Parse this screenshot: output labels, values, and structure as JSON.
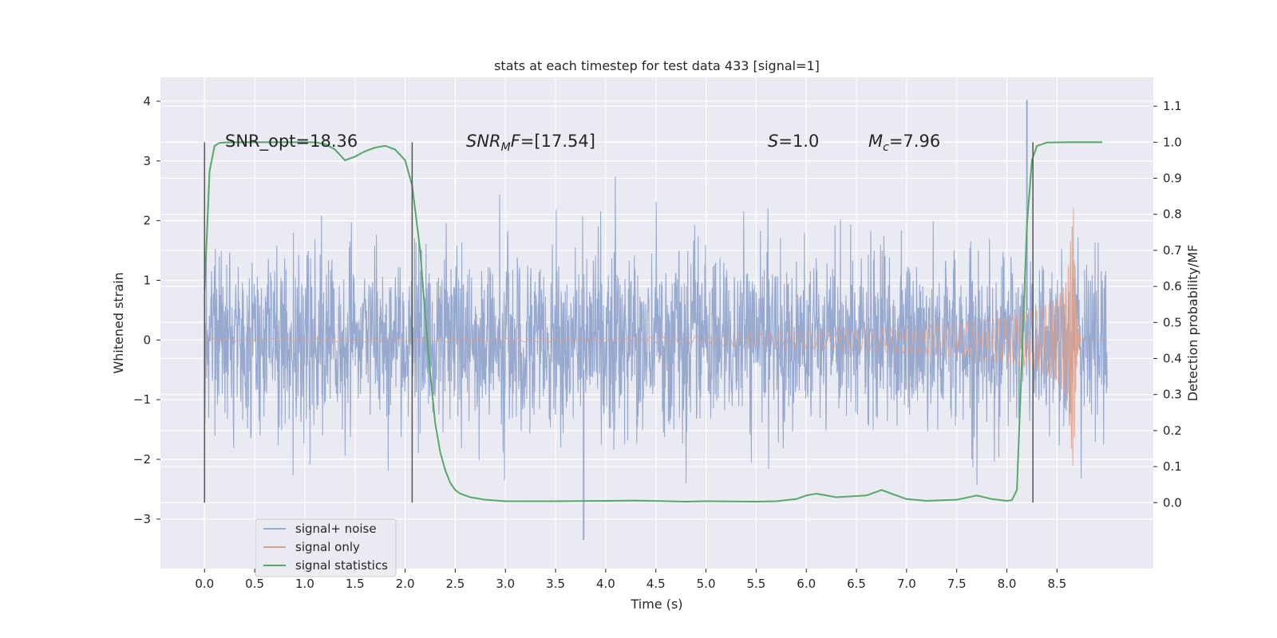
{
  "chart_data": {
    "type": "line",
    "title": "stats at each timestep for test data 433 [signal=1]",
    "xlabel": "Time (s)",
    "ylabel": "Whitened strain",
    "y2label": "Detection probability/MF",
    "xlim": [
      -0.44,
      9.46
    ],
    "ylim": [
      -3.83,
      4.4
    ],
    "y2lim": [
      -0.183,
      1.18
    ],
    "x_ticks": [
      0.0,
      0.5,
      1.0,
      1.5,
      2.0,
      2.5,
      3.0,
      3.5,
      4.0,
      4.5,
      5.0,
      5.5,
      6.0,
      6.5,
      7.0,
      7.5,
      8.0,
      8.5
    ],
    "x_tick_labels": [
      "0.0",
      "0.5",
      "1.0",
      "1.5",
      "2.0",
      "2.5",
      "3.0",
      "3.5",
      "4.0",
      "4.5",
      "5.0",
      "5.5",
      "6.0",
      "6.5",
      "7.0",
      "7.5",
      "8.0",
      "8.5"
    ],
    "y_ticks": [
      4,
      3,
      2,
      1,
      0,
      -1,
      -2,
      -3
    ],
    "y_tick_labels": [
      "4",
      "3",
      "2",
      "1",
      "0",
      "−1",
      "−2",
      "−3"
    ],
    "y2_ticks": [
      1.1,
      1.0,
      0.9,
      0.8,
      0.7,
      0.6,
      0.5,
      0.4,
      0.3,
      0.2,
      0.1,
      0.0
    ],
    "y2_tick_labels": [
      "1.1",
      "1.0",
      "0.9",
      "0.8",
      "0.7",
      "0.6",
      "0.5",
      "0.4",
      "0.3",
      "0.2",
      "0.1",
      "0.0"
    ],
    "grid": true,
    "legend_position": "lower-left",
    "annotations": {
      "snr_opt": "SNR_opt=18.36",
      "snr_mf_sym": "SNR",
      "snr_mf_sub": "M",
      "snr_mf_f": "F",
      "snr_mf_val": "=[17.54]",
      "s_sym": "S",
      "s_val": "=1.0",
      "mc_sym": "M",
      "mc_sub": "c",
      "mc_val": "=7.96"
    },
    "vertical_markers": [
      0.0,
      2.07,
      8.26
    ],
    "series": [
      {
        "name": "signal+ noise",
        "color": "#97a9cf",
        "description": "whitened strain, approx Gaussian noise, duration 0 to 9.0 s, amplitude within about -3.4 to 4.0",
        "t_start": 0.0,
        "t_end": 9.0,
        "peak": {
          "x": 8.2,
          "y": 4.02
        },
        "min": {
          "x": 3.78,
          "y": -3.35
        }
      },
      {
        "name": "signal only",
        "color": "#dd9f88",
        "description": "chirp waveform growing in amplitude, merger near 8.67 s then ringdown",
        "envelope": {
          "x": [
            0.0,
            4.0,
            4.5,
            5.0,
            5.5,
            6.0,
            6.5,
            7.0,
            7.5,
            8.0,
            8.3,
            8.5,
            8.6,
            8.67
          ],
          "amp": [
            0.02,
            0.03,
            0.05,
            0.08,
            0.12,
            0.15,
            0.18,
            0.22,
            0.28,
            0.38,
            0.5,
            0.7,
            1.0,
            2.35
          ]
        },
        "ringdown_end": 8.73,
        "t_end": 9.0
      },
      {
        "name": "signal statistics",
        "color": "#55a868",
        "axis": "right",
        "x": [
          0.0,
          0.05,
          0.1,
          0.15,
          0.2,
          0.3,
          0.5,
          0.8,
          1.0,
          1.1,
          1.2,
          1.3,
          1.4,
          1.5,
          1.6,
          1.7,
          1.8,
          1.9,
          2.0,
          2.07,
          2.15,
          2.2,
          2.25,
          2.3,
          2.35,
          2.4,
          2.45,
          2.5,
          2.55,
          2.65,
          2.8,
          3.0,
          3.5,
          4.0,
          4.3,
          4.8,
          5.0,
          5.5,
          5.7,
          5.9,
          6.0,
          6.1,
          6.3,
          6.6,
          6.75,
          6.85,
          7.0,
          7.2,
          7.5,
          7.7,
          7.85,
          8.0,
          8.05,
          8.1,
          8.15,
          8.2,
          8.25,
          8.3,
          8.4,
          8.6,
          8.95
        ],
        "y": [
          0.59,
          0.92,
          0.99,
          0.998,
          0.999,
          1.0,
          1.0,
          1.0,
          1.0,
          1.0,
          0.995,
          0.98,
          0.95,
          0.96,
          0.975,
          0.985,
          0.99,
          0.98,
          0.95,
          0.88,
          0.7,
          0.52,
          0.36,
          0.22,
          0.14,
          0.09,
          0.055,
          0.035,
          0.025,
          0.015,
          0.008,
          0.004,
          0.004,
          0.005,
          0.006,
          0.003,
          0.004,
          0.003,
          0.004,
          0.01,
          0.02,
          0.025,
          0.015,
          0.02,
          0.035,
          0.025,
          0.01,
          0.005,
          0.008,
          0.02,
          0.01,
          0.005,
          0.007,
          0.035,
          0.4,
          0.77,
          0.95,
          0.99,
          0.999,
          1.0,
          1.0
        ]
      }
    ]
  }
}
